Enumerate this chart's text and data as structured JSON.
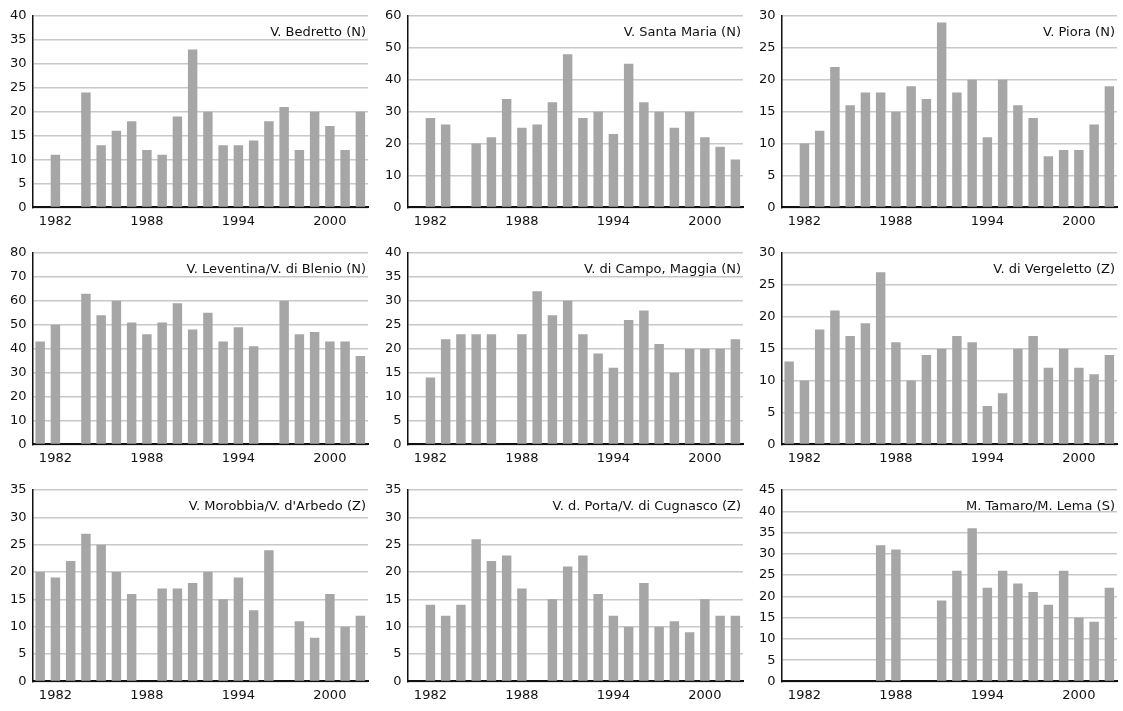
{
  "chart_data": [
    {
      "type": "bar",
      "title": "V. Bedretto (N)",
      "categories": [
        null,
        "1982",
        null,
        null,
        null,
        null,
        null,
        "1988",
        null,
        null,
        null,
        null,
        null,
        "1994",
        null,
        null,
        null,
        null,
        null,
        "2000",
        null,
        null
      ],
      "color": "#a6a6a6",
      "ylim": [
        0,
        40
      ],
      "yticks": [
        0,
        5,
        10,
        15,
        20,
        25,
        30,
        35,
        40
      ],
      "grid": "y",
      "values": [
        null,
        11,
        null,
        24,
        13,
        16,
        18,
        12,
        11,
        19,
        33,
        20,
        13,
        13,
        14,
        18,
        21,
        12,
        20,
        17,
        12,
        20
      ]
    },
    {
      "type": "bar",
      "title": "V. Santa Maria (N)",
      "categories": [
        null,
        "1982",
        null,
        null,
        null,
        null,
        null,
        "1988",
        null,
        null,
        null,
        null,
        null,
        "1994",
        null,
        null,
        null,
        null,
        null,
        "2000",
        null,
        null
      ],
      "color": "#a6a6a6",
      "ylim": [
        0,
        60
      ],
      "yticks": [
        0,
        10,
        20,
        30,
        40,
        50,
        60
      ],
      "grid": "y",
      "values": [
        null,
        28,
        26,
        null,
        20,
        22,
        34,
        25,
        26,
        33,
        48,
        28,
        30,
        23,
        45,
        33,
        30,
        25,
        30,
        22,
        19,
        15
      ]
    },
    {
      "type": "bar",
      "title": "V. Piora (N)",
      "categories": [
        null,
        "1982",
        null,
        null,
        null,
        null,
        null,
        "1988",
        null,
        null,
        null,
        null,
        null,
        "1994",
        null,
        null,
        null,
        null,
        null,
        "2000",
        null,
        null
      ],
      "color": "#a6a6a6",
      "ylim": [
        0,
        30
      ],
      "yticks": [
        0,
        5,
        10,
        15,
        20,
        25,
        30
      ],
      "grid": "y",
      "values": [
        null,
        10,
        12,
        22,
        16,
        18,
        18,
        15,
        19,
        17,
        29,
        18,
        20,
        11,
        20,
        16,
        14,
        8,
        9,
        9,
        13,
        19
      ]
    },
    {
      "type": "bar",
      "title": "V. Leventina/V. di Blenio (N)",
      "categories": [
        null,
        "1982",
        null,
        null,
        null,
        null,
        null,
        "1988",
        null,
        null,
        null,
        null,
        null,
        "1994",
        null,
        null,
        null,
        null,
        null,
        "2000",
        null,
        null
      ],
      "color": "#a6a6a6",
      "ylim": [
        0,
        80
      ],
      "yticks": [
        0,
        10,
        20,
        30,
        40,
        50,
        60,
        70,
        80
      ],
      "grid": "y",
      "values": [
        43,
        50,
        null,
        63,
        54,
        60,
        51,
        46,
        51,
        59,
        48,
        55,
        43,
        49,
        41,
        null,
        60,
        46,
        47,
        43,
        43,
        37
      ]
    },
    {
      "type": "bar",
      "title": "V. di Campo, Maggia (N)",
      "categories": [
        null,
        "1982",
        null,
        null,
        null,
        null,
        null,
        "1988",
        null,
        null,
        null,
        null,
        null,
        "1994",
        null,
        null,
        null,
        null,
        null,
        "2000",
        null,
        null
      ],
      "color": "#a6a6a6",
      "ylim": [
        0,
        40
      ],
      "yticks": [
        0,
        5,
        10,
        15,
        20,
        25,
        30,
        35,
        40
      ],
      "grid": "y",
      "values": [
        null,
        14,
        22,
        23,
        23,
        23,
        null,
        23,
        32,
        27,
        30,
        23,
        19,
        16,
        26,
        28,
        21,
        15,
        20,
        20,
        20,
        22
      ]
    },
    {
      "type": "bar",
      "title": "V. di Vergeletto (Z)",
      "categories": [
        null,
        "1982",
        null,
        null,
        null,
        null,
        null,
        "1988",
        null,
        null,
        null,
        null,
        null,
        "1994",
        null,
        null,
        null,
        null,
        null,
        "2000",
        null,
        null
      ],
      "color": "#a6a6a6",
      "ylim": [
        0,
        30
      ],
      "yticks": [
        0,
        5,
        10,
        15,
        20,
        25,
        30
      ],
      "grid": "y",
      "values": [
        13,
        10,
        18,
        21,
        17,
        19,
        27,
        16,
        10,
        14,
        15,
        17,
        16,
        6,
        8,
        15,
        17,
        12,
        15,
        12,
        11,
        14
      ]
    },
    {
      "type": "bar",
      "title": "V. Morobbia/V. d'Arbedo (Z)",
      "categories": [
        null,
        "1982",
        null,
        null,
        null,
        null,
        null,
        "1988",
        null,
        null,
        null,
        null,
        null,
        "1994",
        null,
        null,
        null,
        null,
        null,
        "2000",
        null,
        null
      ],
      "color": "#a6a6a6",
      "ylim": [
        0,
        35
      ],
      "yticks": [
        0,
        5,
        10,
        15,
        20,
        25,
        30,
        35
      ],
      "grid": "y",
      "values": [
        20,
        19,
        22,
        27,
        25,
        20,
        16,
        null,
        17,
        17,
        18,
        20,
        15,
        19,
        13,
        24,
        null,
        11,
        8,
        16,
        10,
        12
      ]
    },
    {
      "type": "bar",
      "title": "V. d. Porta/V. di Cugnasco (Z)",
      "categories": [
        null,
        "1982",
        null,
        null,
        null,
        null,
        null,
        "1988",
        null,
        null,
        null,
        null,
        null,
        "1994",
        null,
        null,
        null,
        null,
        null,
        "2000",
        null,
        null
      ],
      "color": "#a6a6a6",
      "ylim": [
        0,
        35
      ],
      "yticks": [
        0,
        5,
        10,
        15,
        20,
        25,
        30,
        35
      ],
      "grid": "y",
      "values": [
        null,
        14,
        12,
        14,
        26,
        22,
        23,
        17,
        null,
        15,
        21,
        23,
        16,
        12,
        10,
        18,
        10,
        11,
        9,
        15,
        12,
        12
      ]
    },
    {
      "type": "bar",
      "title": "M. Tamaro/M. Lema (S)",
      "categories": [
        null,
        "1982",
        null,
        null,
        null,
        null,
        null,
        "1988",
        null,
        null,
        null,
        null,
        null,
        "1994",
        null,
        null,
        null,
        null,
        null,
        "2000",
        null,
        null
      ],
      "color": "#a6a6a6",
      "ylim": [
        0,
        45
      ],
      "yticks": [
        0,
        5,
        10,
        15,
        20,
        25,
        30,
        35,
        40,
        45
      ],
      "grid": "y",
      "values": [
        null,
        null,
        null,
        null,
        null,
        null,
        32,
        31,
        null,
        null,
        19,
        26,
        36,
        22,
        26,
        23,
        21,
        18,
        26,
        15,
        14,
        22
      ]
    }
  ]
}
